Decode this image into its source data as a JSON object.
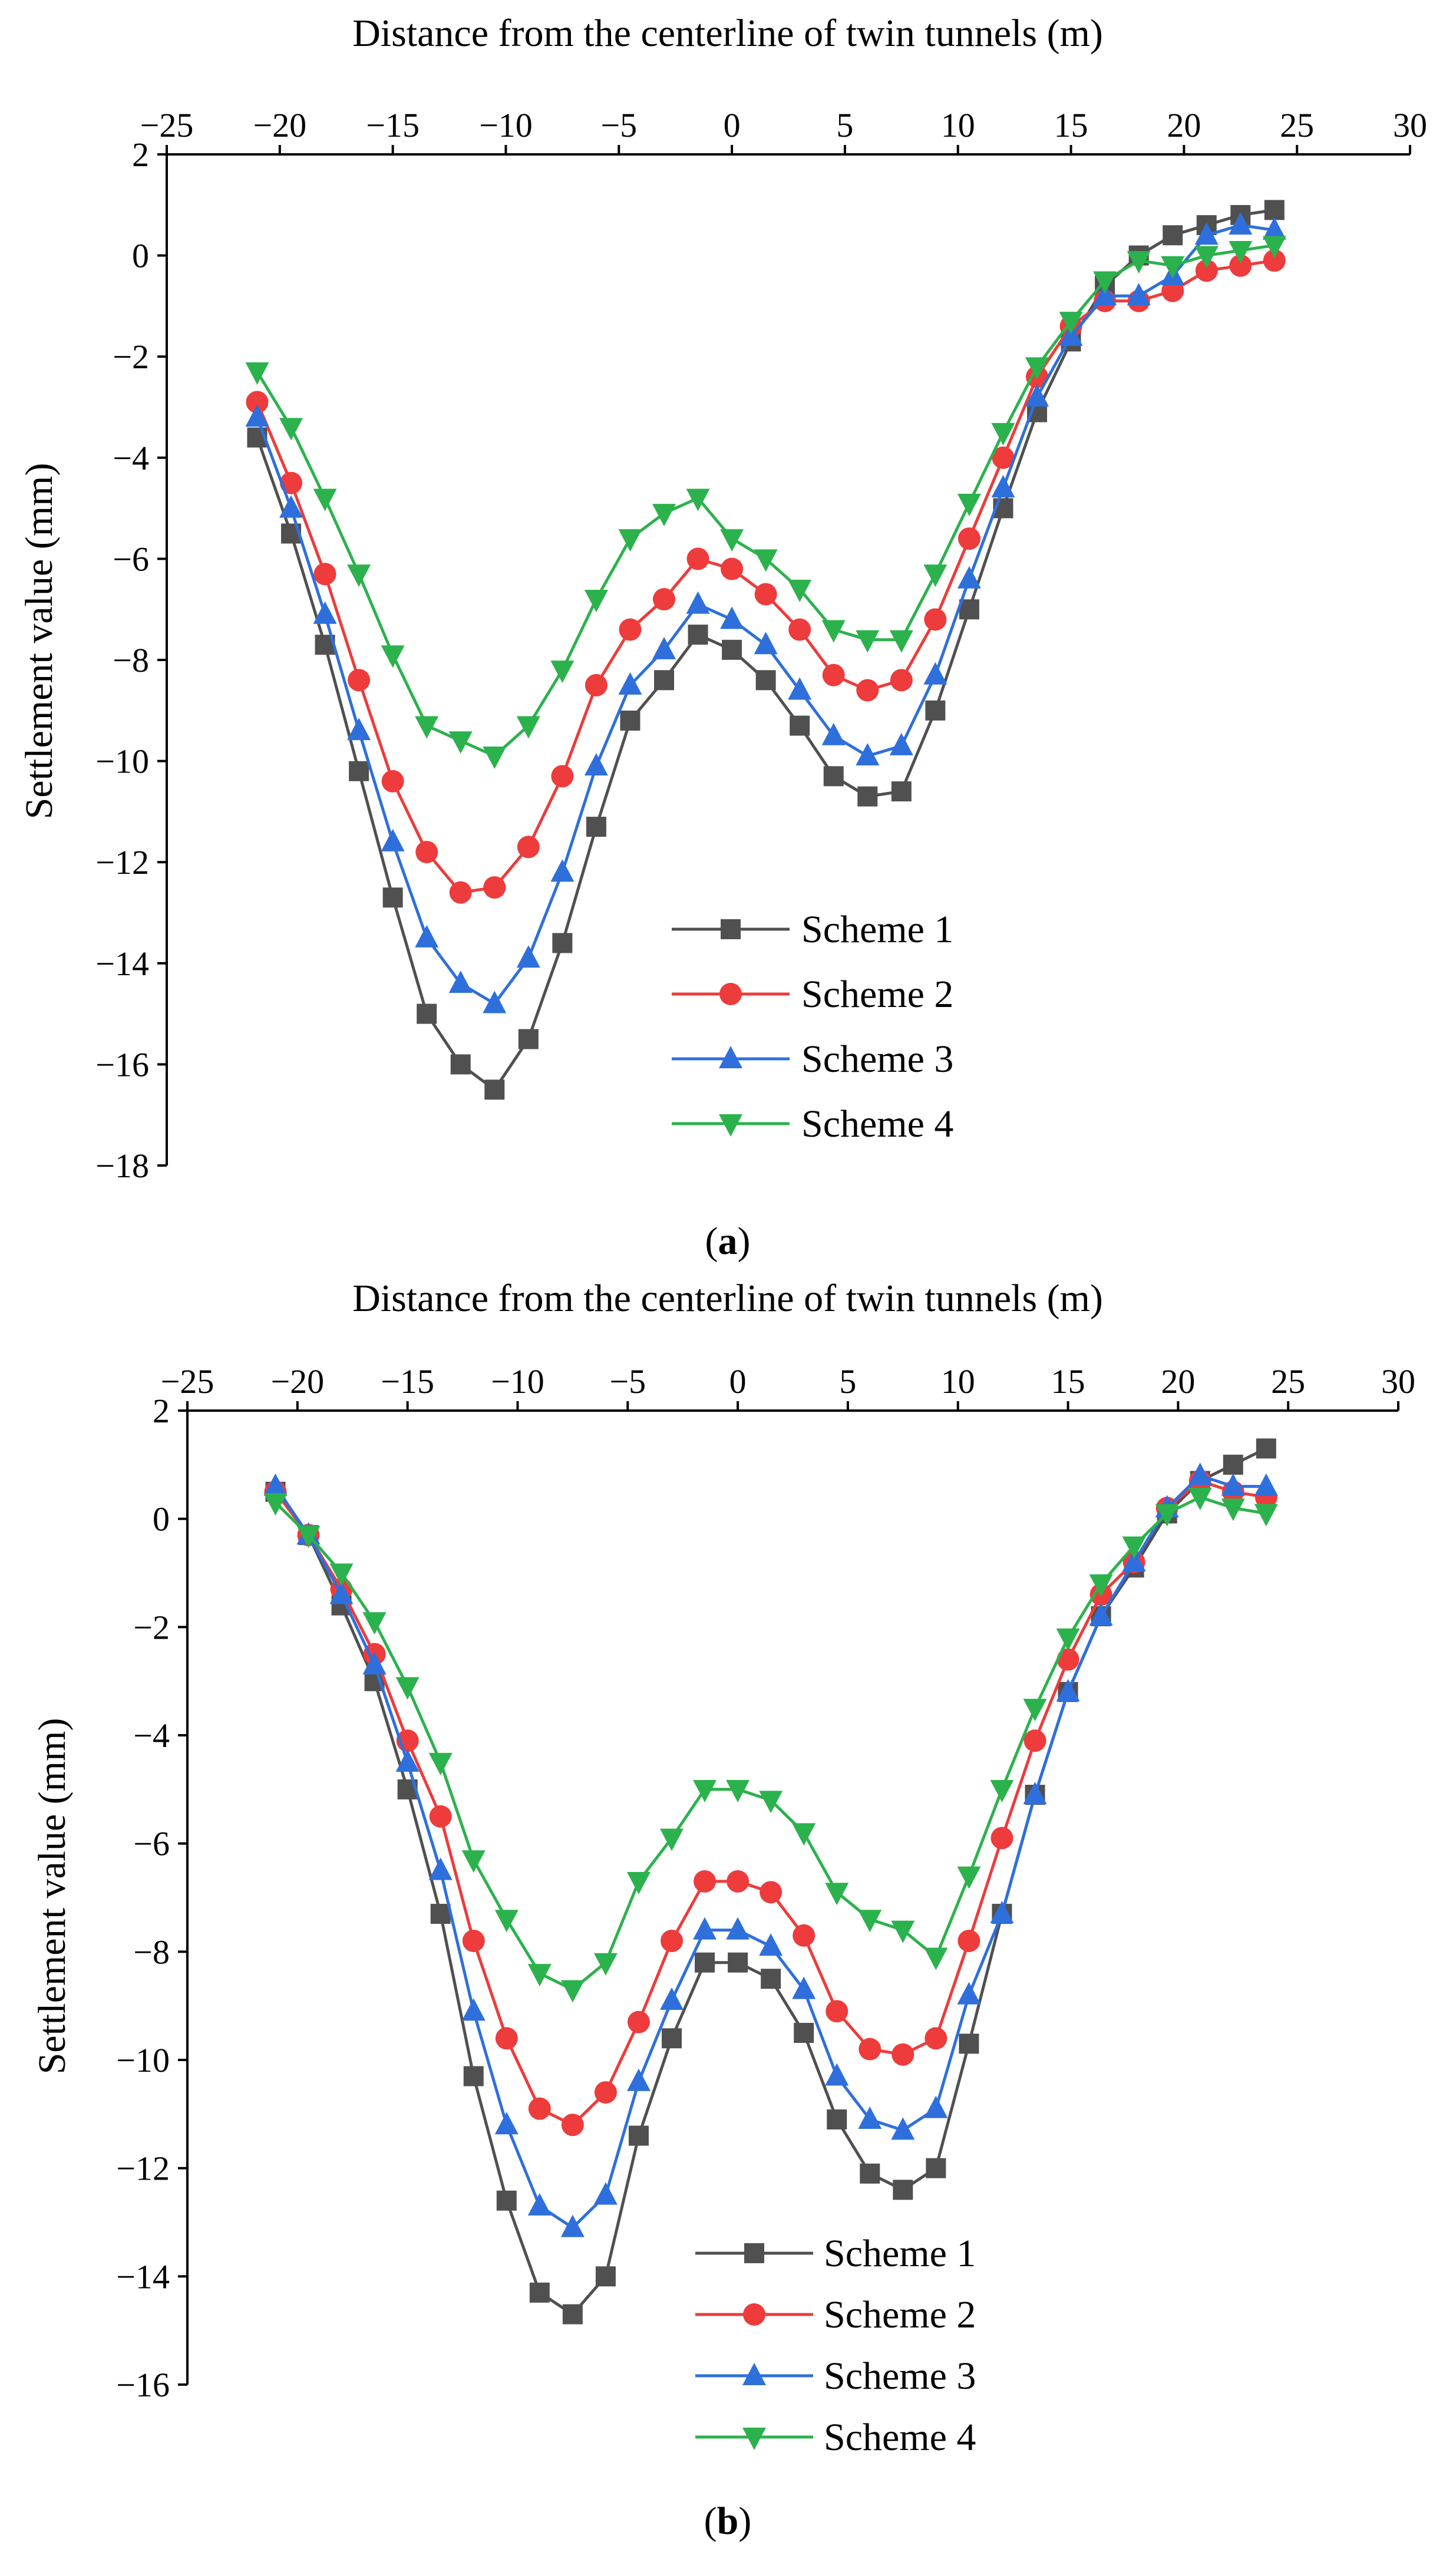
{
  "chart_data": [
    {
      "type": "line",
      "caption_letter": "a",
      "xlabel": "Distance from the centerline of twin tunnels (m)",
      "ylabel": "Settlement value (mm)",
      "xlim": [
        -25,
        30
      ],
      "ylim": [
        -18,
        2
      ],
      "xticks": [
        -25,
        -20,
        -15,
        -10,
        -5,
        0,
        5,
        10,
        15,
        20,
        25,
        30
      ],
      "yticks": [
        2,
        0,
        -2,
        -4,
        -6,
        -8,
        -10,
        -12,
        -14,
        -16,
        -18
      ],
      "x": [
        -21,
        -19.5,
        -18,
        -16.5,
        -15,
        -13.5,
        -12,
        -10.5,
        -9,
        -7.5,
        -6,
        -4.5,
        -3,
        -1.5,
        0,
        1.5,
        3,
        4.5,
        6,
        7.5,
        9,
        10.5,
        12,
        13.5,
        15,
        16.5,
        18,
        19.5,
        21,
        22.5,
        24
      ],
      "series": [
        {
          "name": "Scheme 1",
          "color": "#505050",
          "marker": "square",
          "values": [
            -3.6,
            -5.5,
            -7.7,
            -10.2,
            -12.7,
            -15.0,
            -16.0,
            -16.5,
            -15.5,
            -13.6,
            -11.3,
            -9.2,
            -8.4,
            -7.5,
            -7.8,
            -8.4,
            -9.3,
            -10.3,
            -10.7,
            -10.6,
            -9.0,
            -7.0,
            -5.0,
            -3.1,
            -1.7,
            -0.6,
            0.0,
            0.4,
            0.6,
            0.8,
            0.9
          ]
        },
        {
          "name": "Scheme 2",
          "color": "#ee3b3b",
          "marker": "circle",
          "values": [
            -2.9,
            -4.5,
            -6.3,
            -8.4,
            -10.4,
            -11.8,
            -12.6,
            -12.5,
            -11.7,
            -10.3,
            -8.5,
            -7.4,
            -6.8,
            -6.0,
            -6.2,
            -6.7,
            -7.4,
            -8.3,
            -8.6,
            -8.4,
            -7.2,
            -5.6,
            -4.0,
            -2.4,
            -1.4,
            -0.9,
            -0.9,
            -0.7,
            -0.3,
            -0.2,
            -0.1
          ]
        },
        {
          "name": "Scheme 3",
          "color": "#2e6fdc",
          "marker": "triangle-up",
          "values": [
            -3.2,
            -5.0,
            -7.1,
            -9.4,
            -11.6,
            -13.5,
            -14.4,
            -14.8,
            -13.9,
            -12.2,
            -10.1,
            -8.5,
            -7.8,
            -6.9,
            -7.2,
            -7.7,
            -8.6,
            -9.5,
            -9.9,
            -9.7,
            -8.3,
            -6.4,
            -4.6,
            -2.8,
            -1.6,
            -0.8,
            -0.8,
            -0.4,
            0.4,
            0.6,
            0.5
          ]
        },
        {
          "name": "Scheme 4",
          "color": "#2bb24c",
          "marker": "triangle-down",
          "values": [
            -2.3,
            -3.4,
            -4.8,
            -6.3,
            -7.9,
            -9.3,
            -9.6,
            -9.9,
            -9.3,
            -8.2,
            -6.8,
            -5.6,
            -5.1,
            -4.8,
            -5.6,
            -6.0,
            -6.6,
            -7.4,
            -7.6,
            -7.6,
            -6.3,
            -4.9,
            -3.5,
            -2.2,
            -1.3,
            -0.5,
            -0.1,
            -0.2,
            0.0,
            0.1,
            0.2
          ]
        }
      ]
    },
    {
      "type": "line",
      "caption_letter": "b",
      "xlabel": "Distance from the centerline of twin tunnels (m)",
      "ylabel": "Settlement value (mm)",
      "xlim": [
        -25,
        30
      ],
      "ylim": [
        -16,
        2
      ],
      "xticks": [
        -25,
        -20,
        -15,
        -10,
        -5,
        0,
        5,
        10,
        15,
        20,
        25,
        30
      ],
      "yticks": [
        2,
        0,
        -2,
        -4,
        -6,
        -8,
        -10,
        -12,
        -14,
        -16
      ],
      "x": [
        -21,
        -19.5,
        -18,
        -16.5,
        -15,
        -13.5,
        -12,
        -10.5,
        -9,
        -7.5,
        -6,
        -4.5,
        -3,
        -1.5,
        0,
        1.5,
        3,
        4.5,
        6,
        7.5,
        9,
        10.5,
        12,
        13.5,
        15,
        16.5,
        18,
        19.5,
        21,
        22.5,
        24
      ],
      "series": [
        {
          "name": "Scheme 1",
          "color": "#505050",
          "marker": "square",
          "values": [
            0.5,
            -0.3,
            -1.6,
            -3.0,
            -5.0,
            -7.3,
            -10.3,
            -12.6,
            -14.3,
            -14.7,
            -14.0,
            -11.4,
            -9.6,
            -8.2,
            -8.2,
            -8.5,
            -9.5,
            -11.1,
            -12.1,
            -12.4,
            -12.0,
            -9.7,
            -7.3,
            -5.1,
            -3.2,
            -1.8,
            -0.9,
            0.1,
            0.7,
            1.0,
            1.3
          ]
        },
        {
          "name": "Scheme 2",
          "color": "#ee3b3b",
          "marker": "circle",
          "values": [
            0.5,
            -0.3,
            -1.3,
            -2.5,
            -4.1,
            -5.5,
            -7.8,
            -9.6,
            -10.9,
            -11.2,
            -10.6,
            -9.3,
            -7.8,
            -6.7,
            -6.7,
            -6.9,
            -7.7,
            -9.1,
            -9.8,
            -9.9,
            -9.6,
            -7.8,
            -5.9,
            -4.1,
            -2.6,
            -1.4,
            -0.8,
            0.2,
            0.7,
            0.5,
            0.4
          ]
        },
        {
          "name": "Scheme 3",
          "color": "#2e6fdc",
          "marker": "triangle-up",
          "values": [
            0.6,
            -0.3,
            -1.4,
            -2.7,
            -4.5,
            -6.5,
            -9.1,
            -11.2,
            -12.7,
            -13.1,
            -12.5,
            -10.4,
            -8.9,
            -7.6,
            -7.6,
            -7.9,
            -8.7,
            -10.3,
            -11.1,
            -11.3,
            -10.9,
            -8.8,
            -7.3,
            -5.1,
            -3.2,
            -1.8,
            -0.8,
            0.2,
            0.8,
            0.6,
            0.6
          ]
        },
        {
          "name": "Scheme 4",
          "color": "#2bb24c",
          "marker": "triangle-down",
          "values": [
            0.3,
            -0.3,
            -1.0,
            -1.9,
            -3.1,
            -4.5,
            -6.3,
            -7.4,
            -8.4,
            -8.7,
            -8.2,
            -6.7,
            -5.9,
            -5.0,
            -5.0,
            -5.2,
            -5.8,
            -6.9,
            -7.4,
            -7.6,
            -8.1,
            -6.6,
            -5.0,
            -3.5,
            -2.2,
            -1.2,
            -0.5,
            0.1,
            0.4,
            0.2,
            0.1
          ]
        }
      ]
    }
  ]
}
